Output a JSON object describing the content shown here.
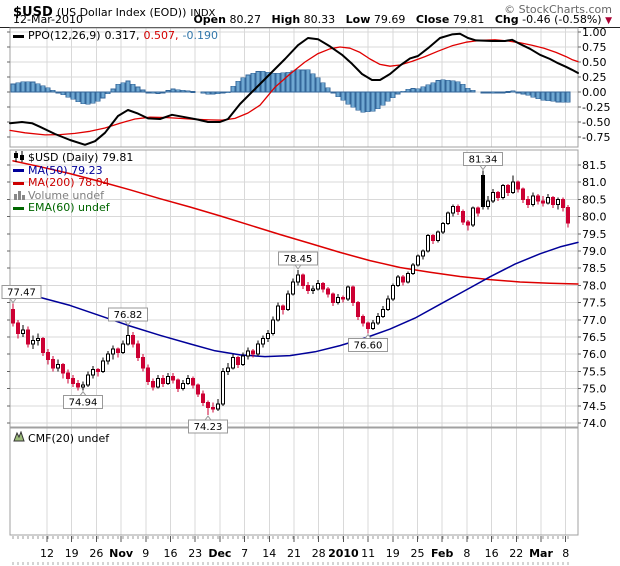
{
  "header": {
    "symbol": "$USD",
    "name": "(US Dollar Index (EOD))",
    "exchange": "INDX",
    "brand": "© StockCharts.com",
    "date": "12-Mar-2010",
    "quote": {
      "open_label": "Open",
      "open": "80.27",
      "high_label": "High",
      "high": "80.33",
      "low_label": "Low",
      "low": "79.69",
      "close_label": "Close",
      "close": "79.81",
      "chg_label": "Chg",
      "chg": "-0.46 (-0.58%)"
    }
  },
  "colors": {
    "candle_down": "#CC0033",
    "candle_up_fill": "#FFFFFF",
    "candle_black": "#000000",
    "ma50": "#000099",
    "ma200": "#DD0000",
    "ppo_line": "#000000",
    "signal_line": "#E00000",
    "hist_fill": "#6FA8D2",
    "hist_stroke": "#336699",
    "grid": "#D9D9D9",
    "panel_border": "#A0A0A0",
    "volume_label": "#808080",
    "ema_label": "#006600",
    "axis_text": "#000000",
    "brand_text": "#666666",
    "chg_triangle": "#AA0033"
  },
  "ppo_panel": {
    "legend": {
      "label": "PPO(12,26,9)",
      "value_main": "0.317,",
      "value_signal": "0.507,",
      "value_hist": "-0.190"
    },
    "yticks": [
      "1.00",
      "0.75",
      "0.50",
      "0.25",
      "0.00",
      "-0.25",
      "-0.50",
      "-0.75"
    ]
  },
  "main_panel": {
    "legend": [
      {
        "name": "price",
        "icon": "candlestick-icon",
        "label": "$USD (Daily) 79.81",
        "color": "#000000"
      },
      {
        "name": "ma50",
        "icon": "line-icon",
        "label": "MA(50) 79.23",
        "color": "#000099"
      },
      {
        "name": "ma200",
        "icon": "line-icon",
        "label": "MA(200) 78.04",
        "color": "#CC0000"
      },
      {
        "name": "volume",
        "icon": "volume-bars-icon",
        "label": "Volume undef",
        "color": "#808080"
      },
      {
        "name": "ema60",
        "icon": "line-icon",
        "label": "EMA(60) undef",
        "color": "#006600"
      }
    ],
    "yticks": [
      "81.5",
      "81.0",
      "80.5",
      "80.0",
      "79.5",
      "79.0",
      "78.5",
      "78.0",
      "77.5",
      "77.0",
      "76.5",
      "76.0",
      "75.5",
      "75.0",
      "74.5",
      "74.0"
    ]
  },
  "cmf_panel": {
    "legend": {
      "label": "CMF(20) undef"
    }
  },
  "xaxis": {
    "labels": [
      {
        "t": "12"
      },
      {
        "t": "19"
      },
      {
        "t": "26"
      },
      {
        "t": "Nov",
        "b": 1
      },
      {
        "t": "9"
      },
      {
        "t": "16"
      },
      {
        "t": "23"
      },
      {
        "t": "Dec",
        "b": 1
      },
      {
        "t": "7"
      },
      {
        "t": "14"
      },
      {
        "t": "21"
      },
      {
        "t": "28"
      },
      {
        "t": "2010",
        "b": 1
      },
      {
        "t": "11"
      },
      {
        "t": "19"
      },
      {
        "t": "25"
      },
      {
        "t": "Feb",
        "b": 1
      },
      {
        "t": "8"
      },
      {
        "t": "16"
      },
      {
        "t": "22"
      },
      {
        "t": "Mar",
        "b": 1
      },
      {
        "t": "8"
      }
    ]
  },
  "chart_data": {
    "type": "candlestick",
    "title": "$USD (US Dollar Index (EOD)) INDX",
    "legend_position": "top-left",
    "grid": true,
    "price_axis": {
      "ylim": [
        73.8,
        81.95
      ],
      "tick_step": 0.5,
      "ticks_from": 81.5,
      "ticks_to": 74.0
    },
    "ppo_axis": {
      "ylim": [
        -0.95,
        1.07
      ],
      "tick_step": 0.25
    },
    "ppo_values": {
      "ppo": 0.317,
      "signal": 0.507,
      "hist": -0.19
    },
    "quote": {
      "open": 80.27,
      "high": 80.33,
      "low": 79.69,
      "close": 79.81,
      "chg_pct": -0.58
    },
    "candles": [
      [
        77.3,
        77.47,
        76.8,
        76.9
      ],
      [
        76.9,
        77.0,
        76.45,
        76.6
      ],
      [
        76.6,
        76.85,
        76.5,
        76.7
      ],
      [
        76.7,
        76.8,
        76.2,
        76.3
      ],
      [
        76.3,
        76.55,
        76.15,
        76.4
      ],
      [
        76.4,
        76.6,
        76.25,
        76.45
      ],
      [
        76.45,
        76.5,
        75.95,
        76.05
      ],
      [
        76.05,
        76.15,
        75.7,
        75.85
      ],
      [
        75.85,
        75.95,
        75.5,
        75.6
      ],
      [
        75.6,
        75.85,
        75.5,
        75.7
      ],
      [
        75.7,
        75.75,
        75.3,
        75.45
      ],
      [
        75.45,
        75.55,
        75.15,
        75.3
      ],
      [
        75.3,
        75.4,
        75.05,
        75.15
      ],
      [
        75.15,
        75.25,
        74.95,
        75.05
      ],
      [
        75.05,
        75.2,
        74.94,
        75.1
      ],
      [
        75.1,
        75.5,
        75.05,
        75.4
      ],
      [
        75.4,
        75.65,
        75.3,
        75.55
      ],
      [
        75.55,
        75.6,
        75.35,
        75.5
      ],
      [
        75.5,
        75.9,
        75.45,
        75.8
      ],
      [
        75.8,
        76.1,
        75.7,
        76.0
      ],
      [
        76.0,
        76.25,
        75.85,
        76.15
      ],
      [
        76.15,
        76.2,
        75.9,
        76.05
      ],
      [
        76.05,
        76.4,
        76.0,
        76.3
      ],
      [
        76.3,
        76.82,
        76.25,
        76.55
      ],
      [
        76.55,
        76.65,
        76.2,
        76.3
      ],
      [
        76.3,
        76.4,
        75.8,
        75.9
      ],
      [
        75.9,
        76.0,
        75.5,
        75.6
      ],
      [
        75.6,
        75.7,
        75.1,
        75.2
      ],
      [
        75.2,
        75.3,
        74.95,
        75.05
      ],
      [
        75.05,
        75.4,
        75.0,
        75.3
      ],
      [
        75.3,
        75.4,
        75.05,
        75.15
      ],
      [
        75.15,
        75.45,
        75.1,
        75.35
      ],
      [
        75.35,
        75.45,
        75.15,
        75.25
      ],
      [
        75.25,
        75.3,
        74.9,
        75.0
      ],
      [
        75.0,
        75.25,
        74.95,
        75.15
      ],
      [
        75.15,
        75.4,
        75.1,
        75.3
      ],
      [
        75.3,
        75.35,
        75.0,
        75.1
      ],
      [
        75.1,
        75.15,
        74.75,
        74.85
      ],
      [
        74.85,
        74.95,
        74.5,
        74.6
      ],
      [
        74.6,
        74.65,
        74.23,
        74.45
      ],
      [
        74.45,
        74.6,
        74.3,
        74.4
      ],
      [
        74.4,
        74.7,
        74.35,
        74.55
      ],
      [
        74.55,
        75.6,
        74.5,
        75.5
      ],
      [
        75.5,
        75.75,
        75.4,
        75.6
      ],
      [
        75.6,
        76.0,
        75.55,
        75.9
      ],
      [
        75.9,
        75.95,
        75.6,
        75.7
      ],
      [
        75.7,
        76.05,
        75.65,
        75.95
      ],
      [
        75.95,
        76.2,
        75.85,
        76.1
      ],
      [
        76.1,
        76.15,
        75.9,
        76.0
      ],
      [
        76.0,
        76.4,
        75.95,
        76.3
      ],
      [
        76.3,
        76.55,
        76.2,
        76.45
      ],
      [
        76.45,
        76.7,
        76.35,
        76.6
      ],
      [
        76.6,
        77.1,
        76.55,
        77.0
      ],
      [
        77.0,
        77.5,
        76.95,
        77.4
      ],
      [
        77.4,
        77.45,
        77.15,
        77.3
      ],
      [
        77.3,
        77.85,
        77.25,
        77.75
      ],
      [
        77.75,
        78.2,
        77.7,
        78.1
      ],
      [
        78.1,
        78.45,
        78.0,
        78.3
      ],
      [
        78.3,
        78.35,
        77.9,
        78.0
      ],
      [
        78.0,
        78.1,
        77.75,
        77.85
      ],
      [
        77.85,
        78.0,
        77.75,
        77.9
      ],
      [
        77.9,
        78.15,
        77.85,
        78.05
      ],
      [
        78.05,
        78.1,
        77.8,
        77.9
      ],
      [
        77.9,
        77.95,
        77.65,
        77.75
      ],
      [
        77.75,
        77.8,
        77.4,
        77.5
      ],
      [
        77.5,
        77.75,
        77.45,
        77.65
      ],
      [
        77.65,
        77.7,
        77.5,
        77.6
      ],
      [
        77.6,
        78.0,
        77.55,
        77.95
      ],
      [
        77.95,
        78.0,
        77.4,
        77.5
      ],
      [
        77.5,
        77.55,
        77.0,
        77.1
      ],
      [
        77.1,
        77.15,
        76.8,
        76.9
      ],
      [
        76.9,
        76.95,
        76.6,
        76.75
      ],
      [
        76.75,
        77.0,
        76.7,
        76.9
      ],
      [
        76.9,
        77.2,
        76.85,
        77.1
      ],
      [
        77.1,
        77.4,
        77.05,
        77.3
      ],
      [
        77.3,
        77.7,
        77.25,
        77.6
      ],
      [
        77.6,
        78.05,
        77.55,
        78.0
      ],
      [
        78.0,
        78.3,
        77.95,
        78.25
      ],
      [
        78.25,
        78.3,
        78.0,
        78.1
      ],
      [
        78.1,
        78.4,
        78.05,
        78.35
      ],
      [
        78.35,
        78.65,
        78.3,
        78.6
      ],
      [
        78.6,
        78.9,
        78.55,
        78.85
      ],
      [
        78.85,
        79.05,
        78.75,
        79.0
      ],
      [
        79.0,
        79.5,
        78.95,
        79.45
      ],
      [
        79.45,
        79.5,
        79.2,
        79.3
      ],
      [
        79.3,
        79.6,
        79.25,
        79.55
      ],
      [
        79.55,
        79.85,
        79.5,
        79.8
      ],
      [
        79.8,
        80.15,
        79.75,
        80.1
      ],
      [
        80.1,
        80.35,
        80.0,
        80.3
      ],
      [
        80.3,
        80.35,
        80.05,
        80.15
      ],
      [
        80.15,
        80.2,
        79.75,
        79.85
      ],
      [
        79.85,
        79.9,
        79.6,
        79.75
      ],
      [
        79.75,
        80.3,
        79.7,
        80.25
      ],
      [
        80.25,
        80.3,
        80.0,
        80.1
      ],
      [
        81.2,
        81.34,
        80.2,
        80.3
      ],
      [
        80.3,
        80.6,
        80.2,
        80.45
      ],
      [
        80.45,
        80.8,
        80.4,
        80.7
      ],
      [
        80.7,
        80.75,
        80.45,
        80.55
      ],
      [
        80.55,
        80.95,
        80.5,
        80.9
      ],
      [
        80.9,
        80.95,
        80.6,
        80.7
      ],
      [
        80.7,
        81.2,
        80.65,
        81.0
      ],
      [
        81.0,
        81.05,
        80.7,
        80.8
      ],
      [
        80.8,
        80.85,
        80.4,
        80.5
      ],
      [
        80.5,
        80.6,
        80.25,
        80.35
      ],
      [
        80.35,
        80.7,
        80.3,
        80.6
      ],
      [
        80.6,
        80.65,
        80.35,
        80.45
      ],
      [
        80.45,
        80.6,
        80.3,
        80.4
      ],
      [
        80.4,
        80.65,
        80.35,
        80.55
      ],
      [
        80.55,
        80.6,
        80.25,
        80.35
      ],
      [
        80.35,
        80.55,
        80.2,
        80.5
      ],
      [
        80.5,
        80.55,
        80.15,
        80.27
      ],
      [
        80.27,
        80.33,
        79.69,
        79.81
      ]
    ],
    "annotations": [
      {
        "text": "77.47",
        "i": 0,
        "pos": "above"
      },
      {
        "text": "74.94",
        "i": 14,
        "pos": "below"
      },
      {
        "text": "76.82",
        "i": 23,
        "pos": "above"
      },
      {
        "text": "74.23",
        "i": 39,
        "pos": "below"
      },
      {
        "text": "78.45",
        "i": 57,
        "pos": "above"
      },
      {
        "text": "76.60",
        "i": 71,
        "pos": "below"
      },
      {
        "text": "81.34",
        "i": 94,
        "pos": "above"
      }
    ],
    "ma50": [
      [
        13,
        77.82
      ],
      [
        40,
        77.65
      ],
      [
        70,
        77.42
      ],
      [
        100,
        77.12
      ],
      [
        130,
        76.82
      ],
      [
        160,
        76.55
      ],
      [
        190,
        76.3
      ],
      [
        215,
        76.1
      ],
      [
        240,
        75.98
      ],
      [
        265,
        75.93
      ],
      [
        290,
        75.96
      ],
      [
        315,
        76.07
      ],
      [
        340,
        76.25
      ],
      [
        365,
        76.47
      ],
      [
        390,
        76.73
      ],
      [
        415,
        77.05
      ],
      [
        440,
        77.45
      ],
      [
        465,
        77.85
      ],
      [
        490,
        78.25
      ],
      [
        515,
        78.62
      ],
      [
        540,
        78.92
      ],
      [
        560,
        79.12
      ],
      [
        578,
        79.25
      ]
    ],
    "ma200": [
      [
        13,
        81.62
      ],
      [
        40,
        81.45
      ],
      [
        70,
        81.25
      ],
      [
        100,
        81.02
      ],
      [
        130,
        80.78
      ],
      [
        160,
        80.52
      ],
      [
        190,
        80.28
      ],
      [
        220,
        80.02
      ],
      [
        250,
        79.75
      ],
      [
        280,
        79.48
      ],
      [
        310,
        79.22
      ],
      [
        340,
        78.96
      ],
      [
        370,
        78.72
      ],
      [
        400,
        78.52
      ],
      [
        430,
        78.38
      ],
      [
        460,
        78.26
      ],
      [
        490,
        78.17
      ],
      [
        520,
        78.1
      ],
      [
        550,
        78.06
      ],
      [
        578,
        78.04
      ]
    ],
    "ppo_line": [
      [
        10,
        -0.52
      ],
      [
        22,
        -0.5
      ],
      [
        32,
        -0.52
      ],
      [
        40,
        -0.58
      ],
      [
        55,
        -0.7
      ],
      [
        70,
        -0.8
      ],
      [
        85,
        -0.88
      ],
      [
        95,
        -0.82
      ],
      [
        105,
        -0.68
      ],
      [
        118,
        -0.4
      ],
      [
        128,
        -0.3
      ],
      [
        138,
        -0.36
      ],
      [
        148,
        -0.44
      ],
      [
        160,
        -0.45
      ],
      [
        172,
        -0.38
      ],
      [
        185,
        -0.42
      ],
      [
        198,
        -0.46
      ],
      [
        208,
        -0.5
      ],
      [
        220,
        -0.5
      ],
      [
        228,
        -0.45
      ],
      [
        240,
        -0.2
      ],
      [
        255,
        0.05
      ],
      [
        270,
        0.3
      ],
      [
        285,
        0.55
      ],
      [
        298,
        0.78
      ],
      [
        308,
        0.9
      ],
      [
        318,
        0.88
      ],
      [
        330,
        0.76
      ],
      [
        342,
        0.62
      ],
      [
        352,
        0.47
      ],
      [
        362,
        0.3
      ],
      [
        372,
        0.2
      ],
      [
        380,
        0.2
      ],
      [
        390,
        0.3
      ],
      [
        400,
        0.44
      ],
      [
        410,
        0.56
      ],
      [
        418,
        0.6
      ],
      [
        428,
        0.73
      ],
      [
        440,
        0.9
      ],
      [
        452,
        0.96
      ],
      [
        460,
        0.97
      ],
      [
        468,
        0.9
      ],
      [
        476,
        0.86
      ],
      [
        492,
        0.85
      ],
      [
        505,
        0.85
      ],
      [
        512,
        0.87
      ],
      [
        520,
        0.8
      ],
      [
        530,
        0.72
      ],
      [
        540,
        0.62
      ],
      [
        550,
        0.55
      ],
      [
        558,
        0.48
      ],
      [
        566,
        0.42
      ],
      [
        572,
        0.37
      ],
      [
        578,
        0.317
      ]
    ],
    "signal_line": [
      [
        10,
        -0.64
      ],
      [
        25,
        -0.68
      ],
      [
        45,
        -0.715
      ],
      [
        60,
        -0.71
      ],
      [
        75,
        -0.69
      ],
      [
        90,
        -0.655
      ],
      [
        105,
        -0.6
      ],
      [
        120,
        -0.52
      ],
      [
        135,
        -0.45
      ],
      [
        150,
        -0.42
      ],
      [
        165,
        -0.425
      ],
      [
        180,
        -0.44
      ],
      [
        195,
        -0.455
      ],
      [
        210,
        -0.465
      ],
      [
        222,
        -0.47
      ],
      [
        235,
        -0.44
      ],
      [
        248,
        -0.35
      ],
      [
        260,
        -0.22
      ],
      [
        275,
        0.08
      ],
      [
        290,
        0.3
      ],
      [
        305,
        0.5
      ],
      [
        318,
        0.64
      ],
      [
        330,
        0.72
      ],
      [
        340,
        0.75
      ],
      [
        350,
        0.73
      ],
      [
        360,
        0.66
      ],
      [
        370,
        0.55
      ],
      [
        380,
        0.46
      ],
      [
        390,
        0.43
      ],
      [
        400,
        0.45
      ],
      [
        412,
        0.51
      ],
      [
        425,
        0.59
      ],
      [
        438,
        0.68
      ],
      [
        452,
        0.77
      ],
      [
        466,
        0.83
      ],
      [
        480,
        0.86
      ],
      [
        495,
        0.87
      ],
      [
        508,
        0.85
      ],
      [
        520,
        0.82
      ],
      [
        532,
        0.78
      ],
      [
        544,
        0.73
      ],
      [
        556,
        0.66
      ],
      [
        566,
        0.59
      ],
      [
        572,
        0.54
      ],
      [
        578,
        0.507
      ]
    ],
    "indicators_undef": [
      "Volume",
      "EMA(60)",
      "CMF(20)"
    ]
  }
}
